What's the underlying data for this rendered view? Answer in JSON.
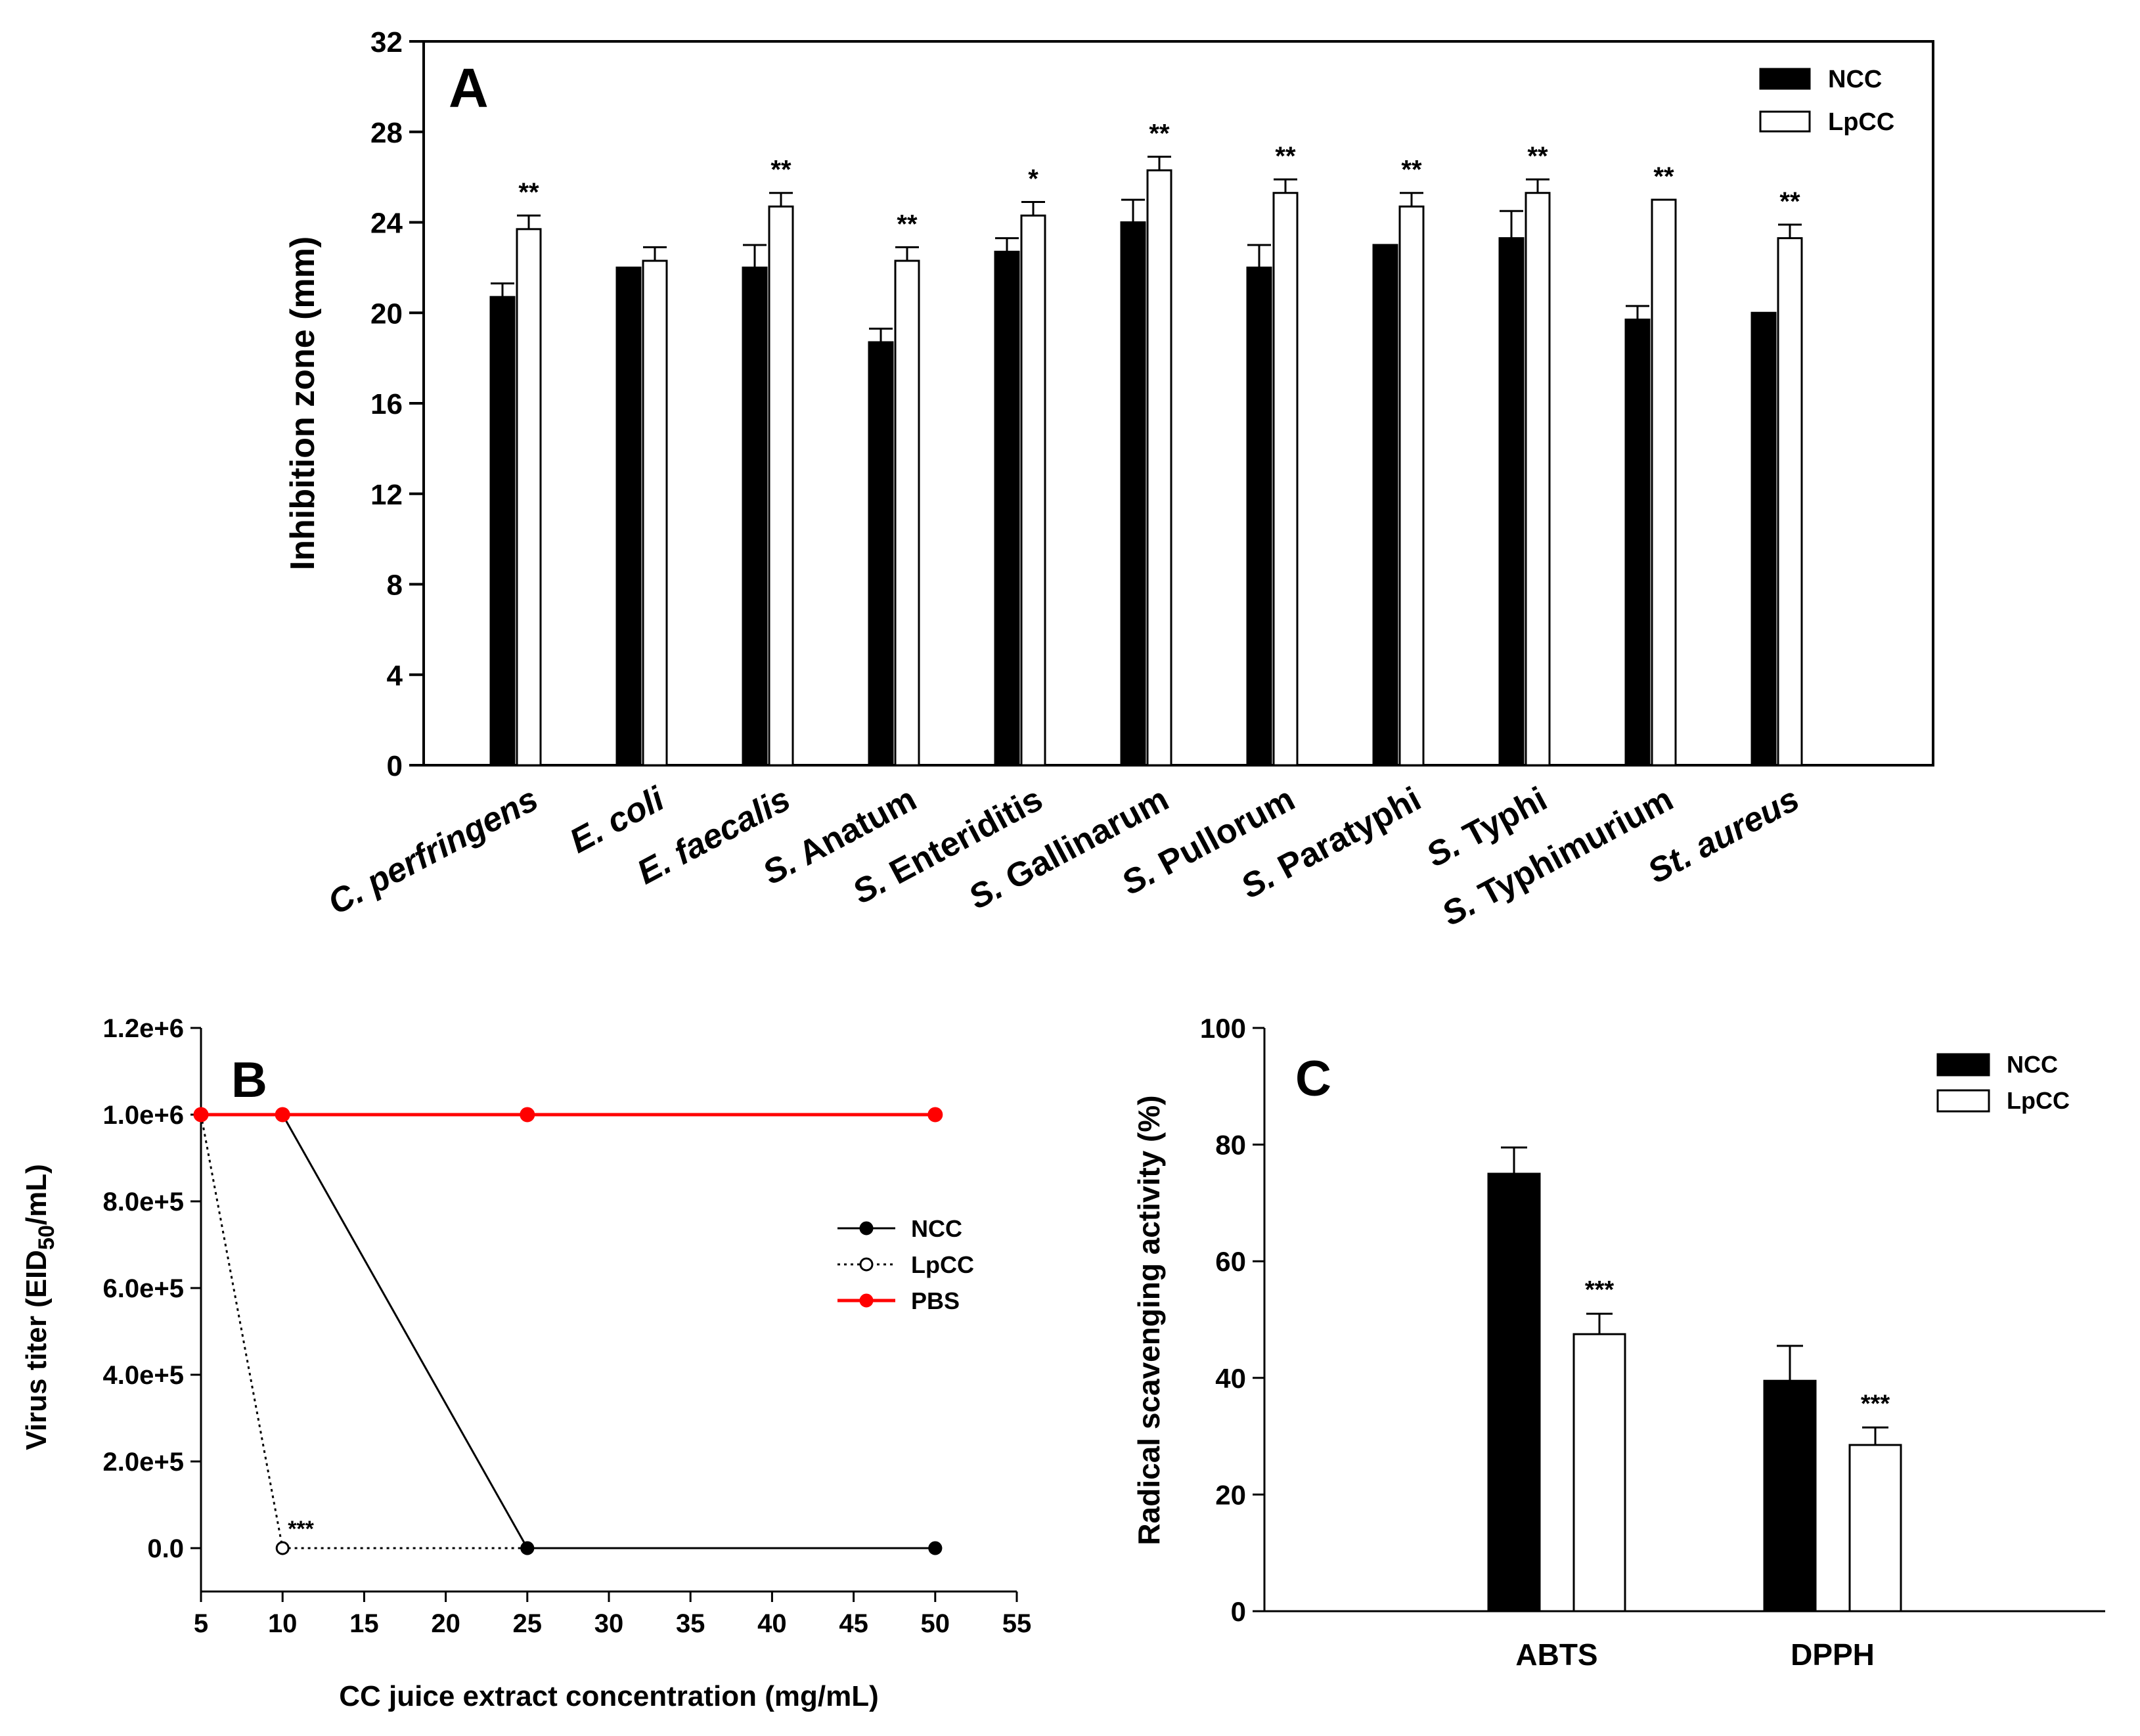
{
  "chart_data": [
    {
      "id": "A",
      "panel_label": "A",
      "type": "bar",
      "ylabel": "Inhibition zone (mm)",
      "xlabel": "",
      "ylim": [
        0,
        32
      ],
      "yticks": [
        "0",
        "4",
        "8",
        "12",
        "16",
        "20",
        "24",
        "28",
        "32"
      ],
      "categories": [
        "C. perfringens",
        "E. coli",
        "E. faecalis",
        "S. Anatum",
        "S. Enteriditis",
        "S. Gallinarum",
        "S. Pullorum",
        "S. Paratyphi",
        "S. Typhi",
        "S. Typhimurium",
        "St. aureus"
      ],
      "italic_prefix": [
        "C. perfringens",
        "E. coli",
        "E. faecalis",
        "S.",
        "S.",
        "S.",
        "S.",
        "S.",
        "S.",
        "S.",
        "St. aureus"
      ],
      "series": [
        {
          "name": "NCC",
          "fill": "#000000",
          "values": [
            20.7,
            22.0,
            22.0,
            18.7,
            22.7,
            24.0,
            22.0,
            23.0,
            23.3,
            19.7,
            20.0
          ],
          "errors": [
            0.6,
            0.0,
            1.0,
            0.6,
            0.6,
            1.0,
            1.0,
            0.0,
            1.2,
            0.6,
            0.0
          ]
        },
        {
          "name": "LpCC",
          "fill": "#ffffff",
          "values": [
            23.7,
            22.3,
            24.7,
            22.3,
            24.3,
            26.3,
            25.3,
            24.7,
            25.3,
            25.0,
            23.3
          ],
          "errors": [
            0.6,
            0.6,
            0.6,
            0.6,
            0.6,
            0.6,
            0.6,
            0.6,
            0.6,
            0.0,
            0.6
          ]
        }
      ],
      "annotations": [
        "**",
        "",
        "**",
        "**",
        "*",
        "**",
        "**",
        "**",
        "**",
        "**",
        "**"
      ],
      "legend": {
        "position": "top-right",
        "entries": [
          "NCC",
          "LpCC"
        ]
      }
    },
    {
      "id": "B",
      "panel_label": "B",
      "type": "line",
      "xlabel": "CC juice extract concentration (mg/mL)",
      "ylabel_main": "Virus titer (EID",
      "ylabel_sub": "50",
      "ylabel_end": "/mL)",
      "xlim": [
        5,
        55
      ],
      "xticks": [
        "5",
        "10",
        "15",
        "20",
        "25",
        "30",
        "35",
        "40",
        "45",
        "50",
        "55"
      ],
      "ylim": [
        -100000,
        1200000
      ],
      "yticks": [
        "0.0",
        "2.0e+5",
        "4.0e+5",
        "6.0e+5",
        "8.0e+5",
        "1.0e+6",
        "1.2e+6"
      ],
      "ytick_values": [
        0,
        200000,
        400000,
        600000,
        800000,
        1000000,
        1200000
      ],
      "x": [
        5,
        10,
        25,
        50
      ],
      "series": [
        {
          "name": "NCC",
          "color": "#000000",
          "dash": "solid",
          "marker": "filled",
          "values": [
            1000000,
            1000000,
            0,
            0
          ]
        },
        {
          "name": "LpCC",
          "color": "#000000",
          "dash": "dotted",
          "marker": "open",
          "values": [
            1000000,
            0,
            0,
            0
          ]
        },
        {
          "name": "PBS",
          "color": "#ff0000",
          "dash": "solid",
          "marker": "filled",
          "values": [
            1000000,
            1000000,
            1000000,
            1000000
          ]
        }
      ],
      "annotations": [
        {
          "text": "***",
          "x": 10,
          "y": 0
        }
      ],
      "legend": {
        "position": "center-right",
        "entries": [
          "NCC",
          "LpCC",
          "PBS"
        ]
      }
    },
    {
      "id": "C",
      "panel_label": "C",
      "type": "bar",
      "ylabel": "Radical scavenging activity (%)",
      "xlabel": "",
      "ylim": [
        0,
        100
      ],
      "yticks": [
        "0",
        "20",
        "40",
        "60",
        "80",
        "100"
      ],
      "categories": [
        "ABTS",
        "DPPH"
      ],
      "series": [
        {
          "name": "NCC",
          "fill": "#000000",
          "values": [
            75.0,
            39.5
          ],
          "errors": [
            4.5,
            6.0
          ]
        },
        {
          "name": "LpCC",
          "fill": "#ffffff",
          "values": [
            47.5,
            28.5
          ],
          "errors": [
            3.5,
            3.0
          ]
        }
      ],
      "annotations": [
        "***",
        "***"
      ],
      "legend": {
        "position": "top-right",
        "entries": [
          "NCC",
          "LpCC"
        ]
      }
    }
  ]
}
